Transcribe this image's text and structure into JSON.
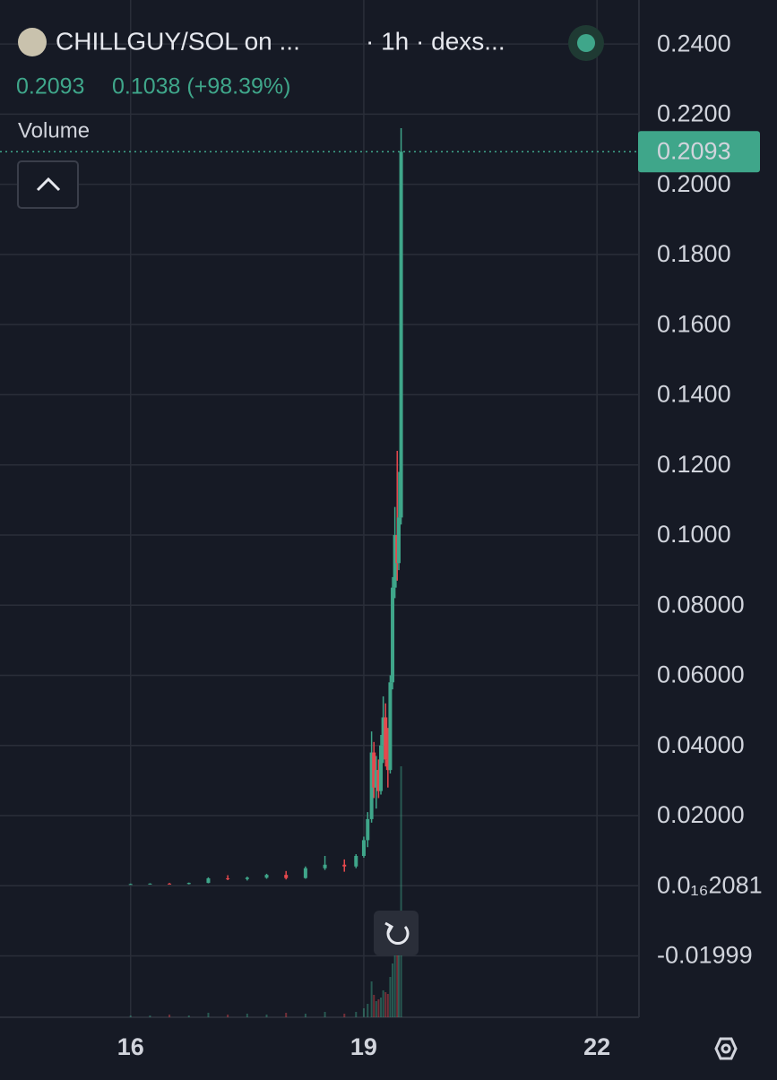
{
  "chart_data": {
    "type": "candlestick",
    "header": {
      "pair": "CHILLGUY/SOL on ...",
      "meta": "· 1h · dexs...",
      "price": "0.2093",
      "change": "0.1038 (+98.39%)"
    },
    "volume_label": "Volume",
    "price_tag": "0.2093",
    "last_price": 0.2093,
    "up_color": "#3fa68a",
    "down_color": "#e5484d",
    "grid": true,
    "xlim": [
      14.32,
      22.54
    ],
    "xticks": [
      16,
      19,
      22
    ],
    "ylim": [
      -0.0375,
      0.25
    ],
    "yticks": [
      {
        "value": 0.24,
        "label": "0.2400"
      },
      {
        "value": 0.22,
        "label": "0.2200"
      },
      {
        "value": 0.2,
        "label": "0.2000"
      },
      {
        "value": 0.18,
        "label": "0.1800"
      },
      {
        "value": 0.16,
        "label": "0.1600"
      },
      {
        "value": 0.14,
        "label": "0.1400"
      },
      {
        "value": 0.12,
        "label": "0.1200"
      },
      {
        "value": 0.1,
        "label": "0.1000"
      },
      {
        "value": 0.08,
        "label": "0.08000"
      },
      {
        "value": 0.06,
        "label": "0.06000"
      },
      {
        "value": 0.04,
        "label": "0.04000"
      },
      {
        "value": 0.02,
        "label": "0.02000"
      },
      {
        "value": 2.081e-17,
        "label": "0.0₁₆2081"
      },
      -0.01999
    ],
    "x": [
      16.0,
      16.25,
      16.5,
      16.75,
      17.0,
      17.25,
      17.5,
      17.75,
      18.0,
      18.25,
      18.5,
      18.75,
      18.9,
      19.0,
      19.05,
      19.1,
      19.13,
      19.16,
      19.19,
      19.22,
      19.25,
      19.28,
      19.31,
      19.34,
      19.37,
      19.4,
      19.43,
      19.45,
      19.48
    ],
    "open": [
      0.0004,
      0.0005,
      0.0006,
      0.0005,
      0.0008,
      0.0021,
      0.0019,
      0.0023,
      0.0031,
      0.0022,
      0.005,
      0.006,
      0.0055,
      0.0085,
      0.013,
      0.019,
      0.038,
      0.028,
      0.033,
      0.027,
      0.04,
      0.048,
      0.036,
      0.033,
      0.058,
      0.085,
      0.1,
      0.092,
      0.105
    ],
    "high": [
      0.0006,
      0.0007,
      0.0008,
      0.0009,
      0.0024,
      0.003,
      0.0026,
      0.0034,
      0.0042,
      0.0055,
      0.0085,
      0.0075,
      0.009,
      0.014,
      0.021,
      0.044,
      0.041,
      0.037,
      0.036,
      0.043,
      0.054,
      0.052,
      0.045,
      0.06,
      0.088,
      0.108,
      0.124,
      0.118,
      0.216
    ],
    "low": [
      0.0003,
      0.0004,
      0.0004,
      0.0004,
      0.0007,
      0.0016,
      0.0015,
      0.002,
      0.0018,
      0.002,
      0.0045,
      0.004,
      0.005,
      0.008,
      0.011,
      0.018,
      0.025,
      0.022,
      0.025,
      0.026,
      0.035,
      0.034,
      0.028,
      0.032,
      0.056,
      0.082,
      0.087,
      0.09,
      0.103
    ],
    "close": [
      0.0005,
      0.0006,
      0.0005,
      0.0008,
      0.0021,
      0.0019,
      0.0023,
      0.0031,
      0.0022,
      0.005,
      0.006,
      0.0055,
      0.0085,
      0.013,
      0.019,
      0.038,
      0.028,
      0.033,
      0.027,
      0.04,
      0.048,
      0.036,
      0.033,
      0.058,
      0.085,
      0.1,
      0.092,
      0.105,
      0.2093
    ],
    "volume": [
      2,
      2,
      3,
      2,
      5,
      3,
      4,
      3,
      5,
      4,
      6,
      4,
      6,
      10,
      15,
      40,
      25,
      18,
      20,
      22,
      30,
      28,
      26,
      45,
      60,
      70,
      90,
      110,
      280
    ]
  }
}
